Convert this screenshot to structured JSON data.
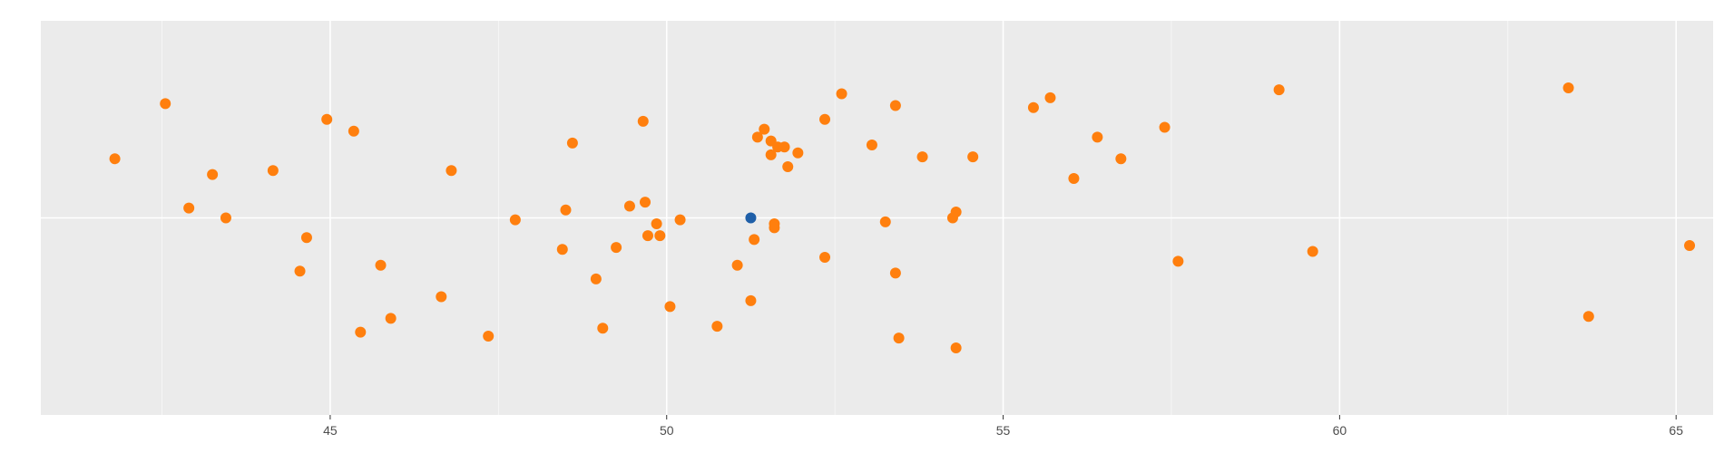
{
  "chart_data": {
    "type": "scatter",
    "title": "",
    "xlabel": "",
    "ylabel": "",
    "xlim": [
      40.7,
      65.55
    ],
    "ylim": [
      -1,
      1
    ],
    "grid": true,
    "x_ticks": [
      45,
      50,
      55,
      60,
      65
    ],
    "x_tick_labels": [
      "45",
      "50",
      "55",
      "60",
      "65"
    ],
    "colors": {
      "panel": "#ebebeb",
      "grid": "#ffffff",
      "default_point": "#ff7f0e",
      "highlight_point": "#1f5fa8"
    },
    "series": [
      {
        "color": "#ff7f0e",
        "points": [
          {
            "x": 41.8,
            "y": 0.3
          },
          {
            "x": 42.55,
            "y": 0.58
          },
          {
            "x": 42.9,
            "y": 0.05
          },
          {
            "x": 43.25,
            "y": 0.22
          },
          {
            "x": 43.45,
            "y": 0.0
          },
          {
            "x": 44.15,
            "y": 0.24
          },
          {
            "x": 44.55,
            "y": -0.27
          },
          {
            "x": 44.65,
            "y": -0.1
          },
          {
            "x": 44.95,
            "y": 0.5
          },
          {
            "x": 45.35,
            "y": 0.44
          },
          {
            "x": 45.45,
            "y": -0.58
          },
          {
            "x": 45.75,
            "y": -0.24
          },
          {
            "x": 45.9,
            "y": -0.51
          },
          {
            "x": 46.65,
            "y": -0.4
          },
          {
            "x": 46.8,
            "y": 0.24
          },
          {
            "x": 47.35,
            "y": -0.6
          },
          {
            "x": 47.75,
            "y": -0.01
          },
          {
            "x": 48.45,
            "y": -0.16
          },
          {
            "x": 48.5,
            "y": 0.04
          },
          {
            "x": 48.6,
            "y": 0.38
          },
          {
            "x": 48.95,
            "y": -0.31
          },
          {
            "x": 49.05,
            "y": -0.56
          },
          {
            "x": 49.25,
            "y": -0.15
          },
          {
            "x": 49.45,
            "y": 0.06
          },
          {
            "x": 49.65,
            "y": 0.49
          },
          {
            "x": 49.68,
            "y": 0.08
          },
          {
            "x": 49.72,
            "y": -0.09
          },
          {
            "x": 49.85,
            "y": -0.03
          },
          {
            "x": 49.9,
            "y": -0.09
          },
          {
            "x": 50.05,
            "y": -0.45
          },
          {
            "x": 50.2,
            "y": -0.01
          },
          {
            "x": 50.75,
            "y": -0.55
          },
          {
            "x": 51.05,
            "y": -0.24
          },
          {
            "x": 51.25,
            "y": -0.42
          },
          {
            "x": 51.3,
            "y": -0.11
          },
          {
            "x": 51.35,
            "y": 0.41
          },
          {
            "x": 51.45,
            "y": 0.45
          },
          {
            "x": 51.55,
            "y": 0.39
          },
          {
            "x": 51.55,
            "y": 0.32
          },
          {
            "x": 51.6,
            "y": -0.03
          },
          {
            "x": 51.6,
            "y": -0.05
          },
          {
            "x": 51.65,
            "y": 0.36
          },
          {
            "x": 51.75,
            "y": 0.36
          },
          {
            "x": 51.8,
            "y": 0.26
          },
          {
            "x": 51.95,
            "y": 0.33
          },
          {
            "x": 52.35,
            "y": -0.2
          },
          {
            "x": 52.35,
            "y": 0.5
          },
          {
            "x": 52.6,
            "y": 0.63
          },
          {
            "x": 53.05,
            "y": 0.37
          },
          {
            "x": 53.25,
            "y": -0.02
          },
          {
            "x": 53.4,
            "y": -0.28
          },
          {
            "x": 53.4,
            "y": 0.57
          },
          {
            "x": 53.45,
            "y": -0.61
          },
          {
            "x": 53.8,
            "y": 0.31
          },
          {
            "x": 54.25,
            "y": 0.0
          },
          {
            "x": 54.3,
            "y": 0.03
          },
          {
            "x": 54.3,
            "y": -0.66
          },
          {
            "x": 54.55,
            "y": 0.31
          },
          {
            "x": 55.45,
            "y": 0.56
          },
          {
            "x": 55.7,
            "y": 0.61
          },
          {
            "x": 56.05,
            "y": 0.2
          },
          {
            "x": 56.4,
            "y": 0.41
          },
          {
            "x": 56.75,
            "y": 0.3
          },
          {
            "x": 57.4,
            "y": 0.46
          },
          {
            "x": 57.6,
            "y": -0.22
          },
          {
            "x": 59.1,
            "y": 0.65
          },
          {
            "x": 59.6,
            "y": -0.17
          },
          {
            "x": 63.4,
            "y": 0.66
          },
          {
            "x": 63.7,
            "y": -0.5
          },
          {
            "x": 65.2,
            "y": -0.14
          }
        ]
      },
      {
        "color": "#1f5fa8",
        "points": [
          {
            "x": 51.25,
            "y": 0.0
          }
        ]
      }
    ]
  }
}
